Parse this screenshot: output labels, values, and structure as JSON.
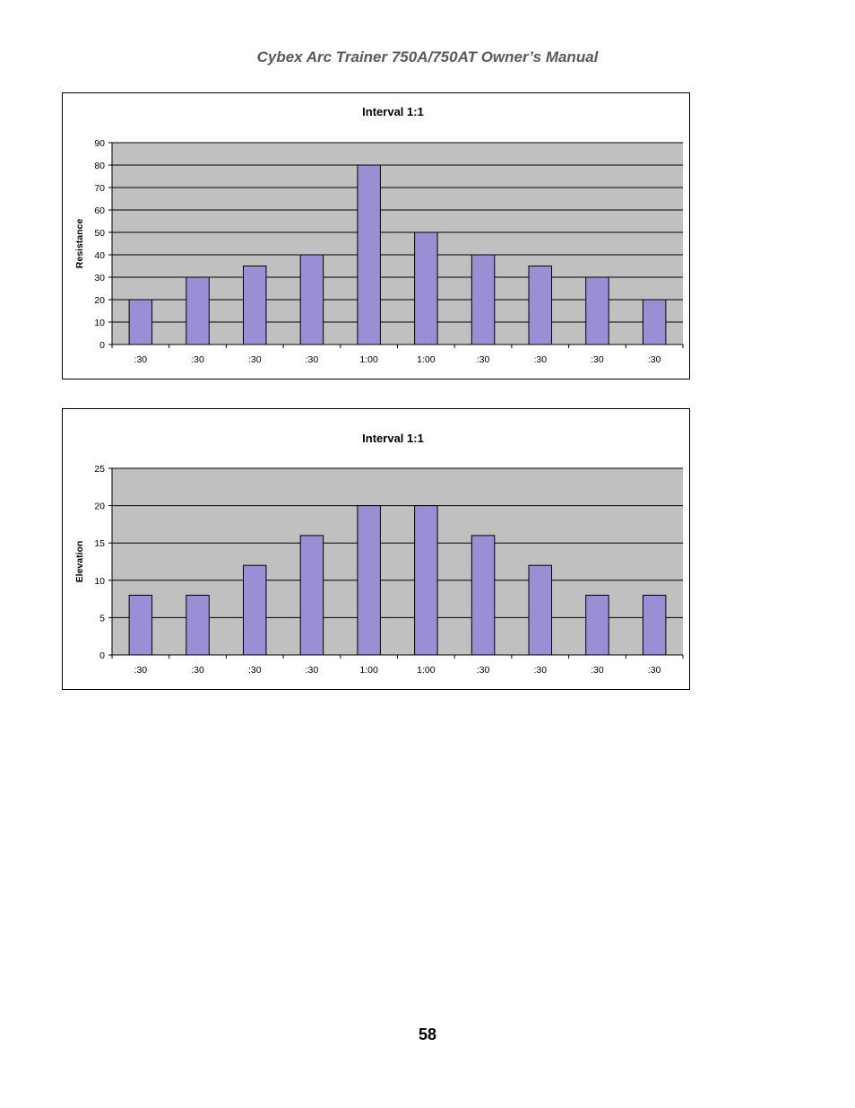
{
  "header": {
    "title": "Cybex Arc Trainer 750A/750AT Owner’s Manual"
  },
  "footer": {
    "page_number": "58"
  },
  "colors": {
    "bar_fill": "#9a8fd4",
    "plot_bg": "#c0c0c0",
    "gridline": "#000000"
  },
  "chart_data": [
    {
      "type": "bar",
      "title": "Interval 1:1",
      "xlabel": "",
      "ylabel": "Resistance",
      "categories": [
        ":30",
        ":30",
        ":30",
        ":30",
        "1:00",
        "1:00",
        ":30",
        ":30",
        ":30",
        ":30"
      ],
      "values": [
        20,
        30,
        35,
        40,
        80,
        50,
        40,
        35,
        30,
        20
      ],
      "ylim": [
        0,
        90
      ],
      "yticks": [
        0,
        10,
        20,
        30,
        40,
        50,
        60,
        70,
        80,
        90
      ],
      "grid": true,
      "legend": "none"
    },
    {
      "type": "bar",
      "title": "Interval 1:1",
      "xlabel": "",
      "ylabel": "Elevation",
      "categories": [
        ":30",
        ":30",
        ":30",
        ":30",
        "1:00",
        "1:00",
        ":30",
        ":30",
        ":30",
        ":30"
      ],
      "values": [
        8,
        8,
        12,
        16,
        20,
        20,
        16,
        12,
        8,
        8
      ],
      "ylim": [
        0,
        25
      ],
      "yticks": [
        0,
        5,
        10,
        15,
        20,
        25
      ],
      "grid": true,
      "legend": "none"
    }
  ]
}
